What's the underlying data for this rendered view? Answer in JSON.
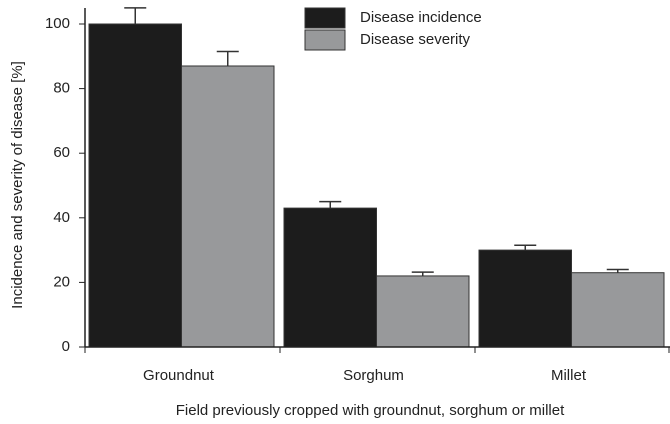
{
  "chart_data": {
    "type": "bar",
    "x_label": "Field previously cropped with groundnut, sorghum or millet",
    "y_label": "Incidence and severity of disease [%]",
    "categories": [
      "Groundnut",
      "Sorghum",
      "Millet"
    ],
    "series": [
      {
        "name": "Disease incidence",
        "color": "#1c1c1c",
        "values": [
          100,
          43,
          30
        ],
        "errors": [
          5,
          2,
          1.5
        ]
      },
      {
        "name": "Disease severity",
        "color": "#98999b",
        "values": [
          87,
          22,
          23
        ],
        "errors": [
          4.5,
          1.2,
          1
        ]
      }
    ],
    "ylim": [
      0,
      100
    ],
    "yticks": [
      0,
      20,
      40,
      60,
      80,
      100
    ],
    "grid": false,
    "legend": "top"
  }
}
